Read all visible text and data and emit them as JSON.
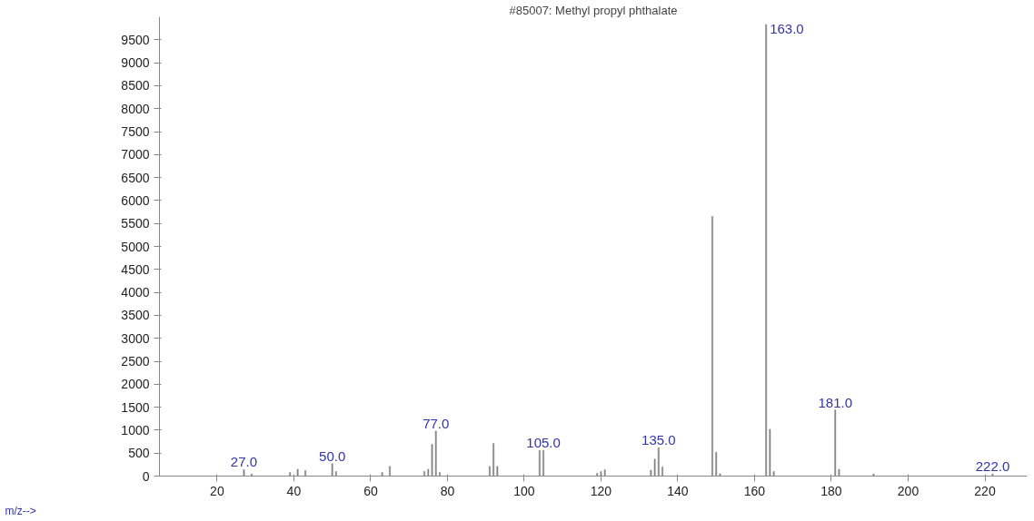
{
  "chart_data": {
    "type": "bar",
    "title": "#85007: Methyl propyl phthalate",
    "x": [
      27,
      29,
      39,
      41,
      43,
      50,
      51,
      63,
      65,
      74,
      75,
      76,
      77,
      78,
      91,
      92,
      93,
      104,
      105,
      119,
      120,
      121,
      133,
      134,
      135,
      136,
      149,
      150,
      151,
      163,
      164,
      165,
      181,
      182,
      191,
      222
    ],
    "values": [
      140,
      50,
      80,
      150,
      120,
      270,
      100,
      80,
      210,
      100,
      150,
      690,
      980,
      80,
      210,
      710,
      210,
      560,
      560,
      60,
      100,
      140,
      130,
      370,
      620,
      200,
      5650,
      520,
      50,
      9830,
      1020,
      100,
      1440,
      150,
      50,
      50
    ],
    "color": "#808080",
    "xlim": [
      5,
      231
    ],
    "ylim": [
      0,
      10000
    ],
    "xticks": [
      20,
      40,
      60,
      80,
      100,
      120,
      140,
      160,
      180,
      200,
      220
    ],
    "yticks": [
      0,
      500,
      1000,
      1500,
      2000,
      2500,
      3000,
      3500,
      4000,
      4500,
      5000,
      5500,
      6000,
      6500,
      7000,
      7500,
      8000,
      8500,
      9000,
      9500
    ],
    "grid": false,
    "annotations": [
      {
        "text": "27.0",
        "x": 27,
        "y": 140
      },
      {
        "text": "50.0",
        "x": 50,
        "y": 270
      },
      {
        "text": "77.0",
        "x": 77,
        "y": 980
      },
      {
        "text": "105.0",
        "x": 105,
        "y": 560
      },
      {
        "text": "135.0",
        "x": 135,
        "y": 620
      },
      {
        "text": "163.0",
        "x": 163,
        "y": 9830
      },
      {
        "text": "181.0",
        "x": 181,
        "y": 1440
      },
      {
        "text": "222.0",
        "x": 222,
        "y": 50
      },
      "m/z-->"
    ]
  }
}
